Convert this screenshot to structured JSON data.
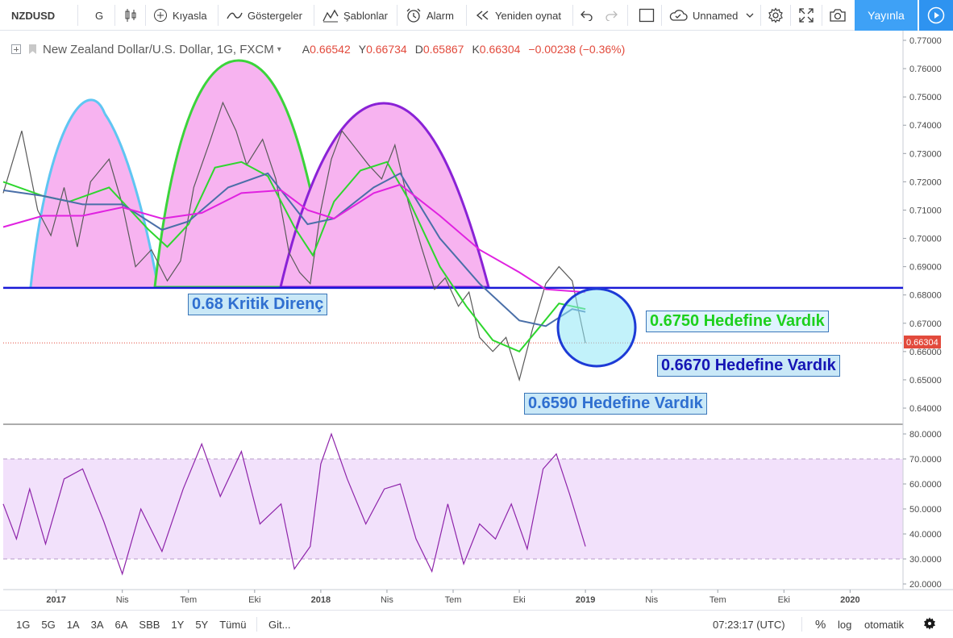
{
  "toolbar": {
    "symbol": "NZDUSD",
    "interval": "G",
    "compare_label": "Kıyasla",
    "indicators_label": "Göstergeler",
    "templates_label": "Şablonlar",
    "alert_label": "Alarm",
    "replay_label": "Yeniden oynat",
    "layout_name": "Unnamed",
    "publish_label": "Yayınla"
  },
  "legend": {
    "title": "New Zealand Dollar/U.S. Dollar, 1G, FXCM",
    "open_key": "A",
    "open": "0.66542",
    "high_key": "Y",
    "high": "0.66734",
    "low_key": "D",
    "low": "0.65867",
    "close_key": "K",
    "close": "0.66304",
    "change": "−0.00238 (−0.36%)"
  },
  "annotations": {
    "kritik": "0.68 Kritik Direnç",
    "target_6750": "0.6750 Hedefine Vardık",
    "target_6670": "0.6670 Hedefine Vardık",
    "target_6590": "0.6590 Hedefine Vardık"
  },
  "price_axis": {
    "labels": [
      "0.77000",
      "0.76000",
      "0.75000",
      "0.74000",
      "0.73000",
      "0.72000",
      "0.71000",
      "0.70000",
      "0.69000",
      "0.68000",
      "0.67000",
      "0.66000",
      "0.65000",
      "0.64000"
    ],
    "last_price": "0.66304"
  },
  "rsi_axis": {
    "labels": [
      "80.0000",
      "70.0000",
      "60.0000",
      "50.0000",
      "40.0000",
      "30.0000",
      "20.0000"
    ]
  },
  "time_axis": {
    "labels": [
      "2017",
      "Nis",
      "Tem",
      "Eki",
      "2018",
      "Nis",
      "Tem",
      "Eki",
      "2019",
      "Nis",
      "Tem",
      "Eki",
      "2020"
    ]
  },
  "chart_data": {
    "type": "line",
    "title": "New Zealand Dollar/U.S. Dollar, 1G, FXCM",
    "price_range": [
      0.635,
      0.775
    ],
    "rsi_range": [
      18,
      82
    ],
    "rsi_band": [
      30,
      70
    ],
    "support_resistance_level": 0.6825,
    "series": [
      {
        "name": "price",
        "points": [
          [
            2016.8,
            0.716
          ],
          [
            2016.87,
            0.738
          ],
          [
            2016.93,
            0.71
          ],
          [
            2016.98,
            0.701
          ],
          [
            2017.03,
            0.718
          ],
          [
            2017.08,
            0.697
          ],
          [
            2017.13,
            0.72
          ],
          [
            2017.2,
            0.728
          ],
          [
            2017.25,
            0.712
          ],
          [
            2017.3,
            0.69
          ],
          [
            2017.36,
            0.696
          ],
          [
            2017.42,
            0.685
          ],
          [
            2017.47,
            0.692
          ],
          [
            2017.52,
            0.718
          ],
          [
            2017.58,
            0.734
          ],
          [
            2017.63,
            0.748
          ],
          [
            2017.68,
            0.738
          ],
          [
            2017.72,
            0.726
          ],
          [
            2017.78,
            0.735
          ],
          [
            2017.83,
            0.721
          ],
          [
            2017.88,
            0.695
          ],
          [
            2017.92,
            0.688
          ],
          [
            2017.96,
            0.684
          ],
          [
            2018.0,
            0.71
          ],
          [
            2018.04,
            0.728
          ],
          [
            2018.08,
            0.738
          ],
          [
            2018.13,
            0.732
          ],
          [
            2018.18,
            0.726
          ],
          [
            2018.23,
            0.721
          ],
          [
            2018.28,
            0.733
          ],
          [
            2018.33,
            0.713
          ],
          [
            2018.38,
            0.697
          ],
          [
            2018.43,
            0.682
          ],
          [
            2018.47,
            0.686
          ],
          [
            2018.52,
            0.676
          ],
          [
            2018.56,
            0.681
          ],
          [
            2018.6,
            0.665
          ],
          [
            2018.65,
            0.66
          ],
          [
            2018.7,
            0.665
          ],
          [
            2018.75,
            0.65
          ],
          [
            2018.8,
            0.668
          ],
          [
            2018.85,
            0.684
          ],
          [
            2018.9,
            0.69
          ],
          [
            2018.95,
            0.685
          ],
          [
            2019.0,
            0.663
          ]
        ]
      },
      {
        "name": "ma_fast",
        "points": [
          [
            2016.8,
            0.72
          ],
          [
            2016.95,
            0.715
          ],
          [
            2017.05,
            0.713
          ],
          [
            2017.2,
            0.718
          ],
          [
            2017.35,
            0.703
          ],
          [
            2017.42,
            0.697
          ],
          [
            2017.5,
            0.705
          ],
          [
            2017.6,
            0.725
          ],
          [
            2017.7,
            0.727
          ],
          [
            2017.8,
            0.722
          ],
          [
            2017.9,
            0.704
          ],
          [
            2017.97,
            0.694
          ],
          [
            2018.05,
            0.713
          ],
          [
            2018.15,
            0.724
          ],
          [
            2018.25,
            0.727
          ],
          [
            2018.33,
            0.714
          ],
          [
            2018.45,
            0.69
          ],
          [
            2018.55,
            0.676
          ],
          [
            2018.65,
            0.664
          ],
          [
            2018.75,
            0.66
          ],
          [
            2018.83,
            0.669
          ],
          [
            2018.9,
            0.677
          ],
          [
            2019.0,
            0.675
          ]
        ]
      },
      {
        "name": "ma_mid",
        "points": [
          [
            2016.8,
            0.717
          ],
          [
            2016.95,
            0.715
          ],
          [
            2017.1,
            0.712
          ],
          [
            2017.25,
            0.712
          ],
          [
            2017.4,
            0.703
          ],
          [
            2017.5,
            0.706
          ],
          [
            2017.65,
            0.718
          ],
          [
            2017.8,
            0.723
          ],
          [
            2017.95,
            0.705
          ],
          [
            2018.05,
            0.707
          ],
          [
            2018.2,
            0.718
          ],
          [
            2018.3,
            0.723
          ],
          [
            2018.45,
            0.7
          ],
          [
            2018.6,
            0.684
          ],
          [
            2018.75,
            0.671
          ],
          [
            2018.85,
            0.669
          ],
          [
            2018.95,
            0.675
          ],
          [
            2019.0,
            0.674
          ]
        ]
      },
      {
        "name": "ma_slow",
        "points": [
          [
            2016.8,
            0.704
          ],
          [
            2016.95,
            0.708
          ],
          [
            2017.1,
            0.708
          ],
          [
            2017.25,
            0.711
          ],
          [
            2017.4,
            0.707
          ],
          [
            2017.55,
            0.709
          ],
          [
            2017.7,
            0.716
          ],
          [
            2017.85,
            0.717
          ],
          [
            2017.95,
            0.71
          ],
          [
            2018.05,
            0.707
          ],
          [
            2018.2,
            0.716
          ],
          [
            2018.3,
            0.719
          ],
          [
            2018.45,
            0.708
          ],
          [
            2018.6,
            0.696
          ],
          [
            2018.75,
            0.688
          ],
          [
            2018.85,
            0.682
          ],
          [
            2019.0,
            0.681
          ]
        ]
      },
      {
        "name": "rsi",
        "points": [
          [
            2016.8,
            52
          ],
          [
            2016.85,
            38
          ],
          [
            2016.9,
            58
          ],
          [
            2016.96,
            36
          ],
          [
            2017.03,
            62
          ],
          [
            2017.1,
            66
          ],
          [
            2017.18,
            45
          ],
          [
            2017.25,
            24
          ],
          [
            2017.32,
            50
          ],
          [
            2017.4,
            33
          ],
          [
            2017.48,
            58
          ],
          [
            2017.55,
            76
          ],
          [
            2017.62,
            55
          ],
          [
            2017.7,
            73
          ],
          [
            2017.77,
            44
          ],
          [
            2017.85,
            52
          ],
          [
            2017.9,
            26
          ],
          [
            2017.96,
            35
          ],
          [
            2018.0,
            68
          ],
          [
            2018.04,
            80
          ],
          [
            2018.1,
            62
          ],
          [
            2018.17,
            44
          ],
          [
            2018.24,
            58
          ],
          [
            2018.3,
            60
          ],
          [
            2018.36,
            38
          ],
          [
            2018.42,
            25
          ],
          [
            2018.48,
            52
          ],
          [
            2018.54,
            28
          ],
          [
            2018.6,
            44
          ],
          [
            2018.66,
            38
          ],
          [
            2018.72,
            52
          ],
          [
            2018.78,
            34
          ],
          [
            2018.84,
            66
          ],
          [
            2018.89,
            72
          ],
          [
            2018.94,
            56
          ],
          [
            2019.0,
            35
          ]
        ]
      }
    ]
  },
  "bottom": {
    "ranges": [
      "1G",
      "5G",
      "1A",
      "3A",
      "6A",
      "SBB",
      "1Y",
      "5Y",
      "Tümü"
    ],
    "goto_label": "Git...",
    "clock": "07:23:17 (UTC)",
    "percent_label": "%",
    "log_label": "log",
    "auto_label": "otomatik"
  },
  "colors": {
    "accent": "#3ea1f6",
    "price": "#5a5a5a",
    "ma_fast": "#2ed62e",
    "ma_mid": "#4a6fa8",
    "ma_slow": "#e022e0",
    "rsi": "#8e24aa",
    "resistance": "#1a1ad6",
    "pattern_fill": "#f7b3f0"
  }
}
